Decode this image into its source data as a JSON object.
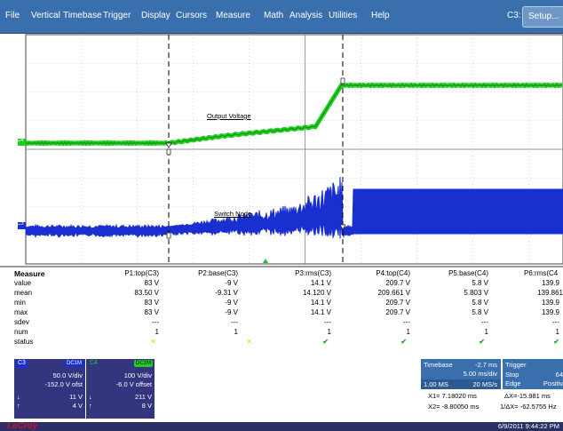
{
  "menu": [
    "File",
    "Vertical",
    "Timebase",
    "Trigger",
    "Display",
    "Cursors",
    "Measure",
    "Math",
    "Analysis",
    "Utilities",
    "Help"
  ],
  "menu_x": [
    6,
    35,
    71,
    116,
    159,
    198,
    243,
    297,
    326,
    370,
    418
  ],
  "c3_label": "C3:",
  "setup_label": "Setup...",
  "waveform_labels": {
    "output_voltage": "Output Voltage",
    "switch_node": "Switch Node"
  },
  "channel_markers": {
    "c4": "C4",
    "c3": "C3"
  },
  "colors": {
    "c4": "#22cc22",
    "c3": "#1a2fd0",
    "menubar": "#3a6fae",
    "logo": "#d1112a"
  },
  "measure": {
    "header": {
      "label": "Measure",
      "cols": [
        "P1:top(C3)",
        "P2:base(C3)",
        "P3:rms(C3)",
        "P4:top(C4)",
        "P5:base(C4)",
        "P6:rms(C4"
      ]
    },
    "rows": [
      {
        "label": "value",
        "cols": [
          "83 V",
          "-9 V",
          "14.1 V",
          "209.7 V",
          "5.8 V",
          "139.9"
        ]
      },
      {
        "label": "mean",
        "cols": [
          "83.50 V",
          "-9.31 V",
          "14.120 V",
          "209.661 V",
          "5.803 V",
          "139.861"
        ]
      },
      {
        "label": "min",
        "cols": [
          "83 V",
          "-9 V",
          "14.1 V",
          "209.7 V",
          "5.8 V",
          "139.9"
        ]
      },
      {
        "label": "max",
        "cols": [
          "83 V",
          "-9 V",
          "14.1 V",
          "209.7 V",
          "5.8 V",
          "139.9"
        ]
      },
      {
        "label": "sdev",
        "cols": [
          "---",
          "---",
          "---",
          "---",
          "---",
          "---"
        ]
      },
      {
        "label": "num",
        "cols": [
          "1",
          "1",
          "1",
          "1",
          "1",
          "1"
        ]
      }
    ],
    "status": {
      "label": "status",
      "marks": [
        "x",
        "x",
        "check",
        "check",
        "check",
        "check"
      ]
    }
  },
  "ch3": {
    "name": "C3",
    "coupling": "DC1M",
    "vdiv": "50.0 V/div",
    "offset": "-152.0 V ofst",
    "fall_val": "11 V",
    "rise_val": "4 V",
    "fall_sym": "↓",
    "rise_sym": "↑"
  },
  "ch4": {
    "name": "C4",
    "coupling": "DC1M",
    "vdiv": "100 V/div",
    "offset": "-6.0 V offset",
    "fall_val": "211 V",
    "rise_val": "8 V",
    "fall_sym": "↓",
    "rise_sym": "↑"
  },
  "timebase": {
    "label": "Timebase",
    "delay": "-2.7 ms",
    "rate1": "5.00 ms/div",
    "points": "1.00 MS",
    "rate2": "20 MS/s"
  },
  "trigger": {
    "label": "Trigger",
    "mode": "Stop",
    "level": "64",
    "type": "Edge",
    "slope": "Positiv"
  },
  "cursors": {
    "x1": "X1= 7.18020 ms",
    "dx": "ΔX=-15.981 ms",
    "x2": "X2= -8.80050 ms",
    "inv_dx": "1/ΔX= -62.5755 Hz"
  },
  "status_bar": {
    "logo": "LeCroy",
    "datetime": "6/9/2011 9:44:22 PM"
  }
}
